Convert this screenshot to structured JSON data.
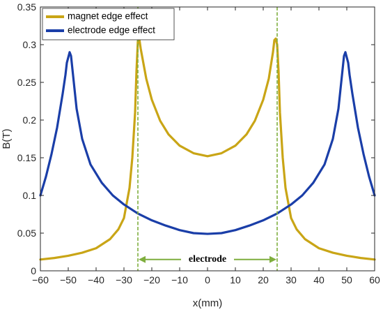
{
  "chart_data": {
    "type": "line",
    "xlabel": "x(mm)",
    "ylabel": "B(T)",
    "xlim": [
      -60,
      60
    ],
    "ylim": [
      0,
      0.35
    ],
    "xticks": [
      -60,
      -50,
      -40,
      -30,
      -20,
      -10,
      0,
      10,
      20,
      30,
      40,
      50,
      60
    ],
    "yticks": [
      0,
      0.05,
      0.1,
      0.15,
      0.2,
      0.25,
      0.3,
      0.35
    ],
    "xtick_labels": [
      "−60",
      "−50",
      "−40",
      "−30",
      "−20",
      "−10",
      "0",
      "10",
      "20",
      "30",
      "40",
      "50",
      "60"
    ],
    "ytick_labels": [
      "0",
      "0.05",
      "0.1",
      "0.15",
      "0.2",
      "0.25",
      "0.3",
      "0.35"
    ],
    "legend_position": "top-left",
    "series": [
      {
        "name": "magnet edge effect",
        "color": "#c9a516",
        "points": [
          [
            -60,
            0.015
          ],
          [
            -55,
            0.017
          ],
          [
            -50,
            0.02
          ],
          [
            -45,
            0.024
          ],
          [
            -40,
            0.03
          ],
          [
            -35,
            0.042
          ],
          [
            -32,
            0.055
          ],
          [
            -30,
            0.07
          ],
          [
            -28,
            0.11
          ],
          [
            -27,
            0.15
          ],
          [
            -26,
            0.21
          ],
          [
            -25.5,
            0.265
          ],
          [
            -25,
            0.305
          ],
          [
            -24.5,
            0.308
          ],
          [
            -24,
            0.295
          ],
          [
            -22,
            0.255
          ],
          [
            -20,
            0.227
          ],
          [
            -17,
            0.199
          ],
          [
            -14,
            0.181
          ],
          [
            -10,
            0.166
          ],
          [
            -5,
            0.156
          ],
          [
            0,
            0.152
          ],
          [
            5,
            0.156
          ],
          [
            10,
            0.166
          ],
          [
            14,
            0.181
          ],
          [
            17,
            0.199
          ],
          [
            20,
            0.227
          ],
          [
            22,
            0.255
          ],
          [
            23.5,
            0.29
          ],
          [
            24,
            0.306
          ],
          [
            24.5,
            0.308
          ],
          [
            25,
            0.3
          ],
          [
            25.5,
            0.265
          ],
          [
            26,
            0.21
          ],
          [
            27,
            0.15
          ],
          [
            28,
            0.11
          ],
          [
            30,
            0.07
          ],
          [
            32,
            0.055
          ],
          [
            35,
            0.042
          ],
          [
            40,
            0.03
          ],
          [
            45,
            0.024
          ],
          [
            50,
            0.02
          ],
          [
            55,
            0.017
          ],
          [
            60,
            0.015
          ]
        ]
      },
      {
        "name": "electrode edge effect",
        "color": "#1a3ea8",
        "points": [
          [
            -60,
            0.1
          ],
          [
            -58,
            0.125
          ],
          [
            -56,
            0.155
          ],
          [
            -54,
            0.19
          ],
          [
            -52,
            0.235
          ],
          [
            -51,
            0.26
          ],
          [
            -50.5,
            0.276
          ],
          [
            -50,
            0.283
          ],
          [
            -49.5,
            0.29
          ],
          [
            -49,
            0.285
          ],
          [
            -48,
            0.25
          ],
          [
            -47,
            0.215
          ],
          [
            -45,
            0.175
          ],
          [
            -42,
            0.141
          ],
          [
            -38,
            0.117
          ],
          [
            -34,
            0.1
          ],
          [
            -30,
            0.088
          ],
          [
            -25,
            0.076
          ],
          [
            -20,
            0.067
          ],
          [
            -15,
            0.06
          ],
          [
            -10,
            0.054
          ],
          [
            -5,
            0.05
          ],
          [
            0,
            0.049
          ],
          [
            5,
            0.05
          ],
          [
            10,
            0.054
          ],
          [
            15,
            0.06
          ],
          [
            20,
            0.067
          ],
          [
            25,
            0.076
          ],
          [
            30,
            0.088
          ],
          [
            34,
            0.1
          ],
          [
            38,
            0.117
          ],
          [
            42,
            0.141
          ],
          [
            45,
            0.175
          ],
          [
            47,
            0.215
          ],
          [
            48,
            0.25
          ],
          [
            49,
            0.285
          ],
          [
            49.5,
            0.29
          ],
          [
            50,
            0.283
          ],
          [
            50.5,
            0.276
          ],
          [
            51,
            0.26
          ],
          [
            52,
            0.235
          ],
          [
            54,
            0.19
          ],
          [
            56,
            0.155
          ],
          [
            58,
            0.125
          ],
          [
            60,
            0.1
          ]
        ]
      }
    ],
    "reference_lines": [
      {
        "x": -25,
        "color": "#7fae3e"
      },
      {
        "x": 25,
        "color": "#7fae3e"
      }
    ],
    "annotation": {
      "text": "electrode",
      "x_from": -25,
      "x_to": 25,
      "y": 0.015,
      "color": "#7fae3e"
    }
  }
}
